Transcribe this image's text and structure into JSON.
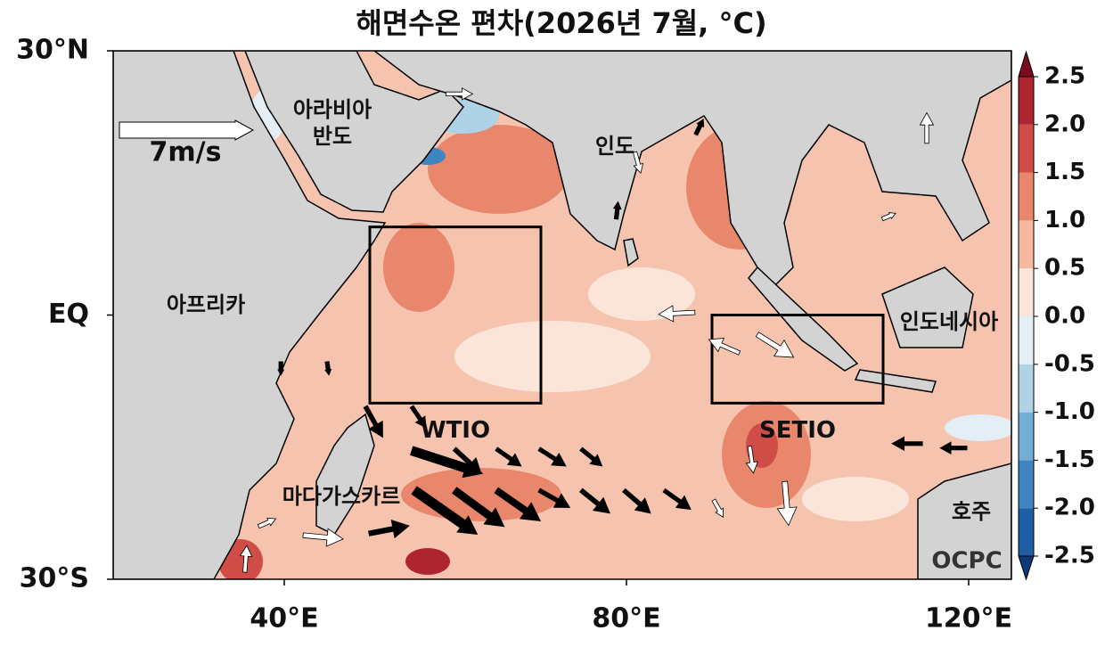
{
  "title": "해면수온 편차(2026년 7월, °C)",
  "map": {
    "lonlim": [
      20,
      125
    ],
    "latlim": [
      -30,
      30
    ],
    "lon_ticks": [
      {
        "value": 40,
        "label": "40°E"
      },
      {
        "value": 80,
        "label": "80°E"
      },
      {
        "value": 120,
        "label": "120°E"
      }
    ],
    "lat_ticks": [
      {
        "value": 30,
        "label": "30°N"
      },
      {
        "value": 0,
        "label": "EQ"
      },
      {
        "value": -30,
        "label": "30°S"
      }
    ],
    "regions": [
      {
        "lines": [
          "아라비아",
          "반도"
        ]
      },
      {
        "lines": [
          "인도"
        ]
      },
      {
        "lines": [
          "아프리카"
        ]
      },
      {
        "lines": [
          "인도네시아"
        ]
      },
      {
        "lines": [
          "마다가스카르"
        ]
      },
      {
        "lines": [
          "호주"
        ]
      }
    ],
    "boxes": [
      {
        "name": "WTIO",
        "lon": [
          50,
          70
        ],
        "lat": [
          -10,
          10
        ]
      },
      {
        "name": "SETIO",
        "lon": [
          90,
          110
        ],
        "lat": [
          -10,
          0
        ]
      }
    ],
    "wind_reference": {
      "value": 7,
      "label": "7m/s"
    },
    "wind_vectors": [
      {
        "lon": 49.5,
        "lat": -10.4,
        "u": 0.9,
        "v": -1.6,
        "significant": true
      },
      {
        "lon": 54.9,
        "lat": -10.4,
        "u": 0.75,
        "v": -1.1,
        "significant": true
      },
      {
        "lon": 54.9,
        "lat": -15.4,
        "u": 3.7,
        "v": -1.2,
        "significant": true
      },
      {
        "lon": 59.9,
        "lat": -15.2,
        "u": 1.4,
        "v": -1.3,
        "significant": true
      },
      {
        "lon": 64.8,
        "lat": -15.2,
        "u": 1.3,
        "v": -0.9,
        "significant": true
      },
      {
        "lon": 69.8,
        "lat": -15.2,
        "u": 1.4,
        "v": -0.9,
        "significant": true
      },
      {
        "lon": 74.7,
        "lat": -15.2,
        "u": 1.1,
        "v": -0.9,
        "significant": true
      },
      {
        "lon": 55.2,
        "lat": -19.9,
        "u": 3.3,
        "v": -2.3,
        "significant": true
      },
      {
        "lon": 59.9,
        "lat": -19.9,
        "u": 2.6,
        "v": -1.9,
        "significant": true
      },
      {
        "lon": 64.8,
        "lat": -19.9,
        "u": 2.3,
        "v": -1.6,
        "significant": true
      },
      {
        "lon": 69.8,
        "lat": -19.9,
        "u": 1.6,
        "v": -0.9,
        "significant": true
      },
      {
        "lon": 74.7,
        "lat": -19.9,
        "u": 1.5,
        "v": -1.2,
        "significant": true
      },
      {
        "lon": 79.7,
        "lat": -19.9,
        "u": 1.4,
        "v": -1.2,
        "significant": true
      },
      {
        "lon": 84.4,
        "lat": -19.9,
        "u": 1.4,
        "v": -1.0,
        "significant": true
      },
      {
        "lon": 49.9,
        "lat": -24.8,
        "u": 2.1,
        "v": 0.4,
        "significant": true
      },
      {
        "lon": 114.6,
        "lat": -14.6,
        "u": -1.6,
        "v": 0,
        "significant": true
      },
      {
        "lon": 119.8,
        "lat": -15.1,
        "u": -1.4,
        "v": 0,
        "significant": true
      },
      {
        "lon": 45,
        "lat": -5.3,
        "u": 0.1,
        "v": -0.7,
        "significant": true
      },
      {
        "lon": 39.6,
        "lat": -5.3,
        "u": 0,
        "v": -0.7,
        "significant": true
      },
      {
        "lon": 88.1,
        "lat": 20.5,
        "u": 0.4,
        "v": 0.8,
        "significant": true
      },
      {
        "lon": 78.8,
        "lat": 10.9,
        "u": 0.1,
        "v": 0.9,
        "significant": true
      },
      {
        "lon": 88,
        "lat": 0.3,
        "u": -1.9,
        "v": -0.1,
        "significant": false
      },
      {
        "lon": 95.3,
        "lat": -2.2,
        "u": 1.9,
        "v": -1.2,
        "significant": false
      },
      {
        "lon": 93.2,
        "lat": -4.3,
        "u": -1.6,
        "v": 0.7,
        "significant": false
      },
      {
        "lon": 58.9,
        "lat": 25.1,
        "u": 1.4,
        "v": 0,
        "significant": false
      },
      {
        "lon": 81,
        "lat": 18.5,
        "u": 0.3,
        "v": -1.1,
        "significant": false
      },
      {
        "lon": 115.1,
        "lat": 19.5,
        "u": 0,
        "v": 1.6,
        "significant": false
      },
      {
        "lon": 109.9,
        "lat": 10.9,
        "u": 0.7,
        "v": 0.3,
        "significant": false
      },
      {
        "lon": 37,
        "lat": -24,
        "u": 0.9,
        "v": 0.4,
        "significant": false
      },
      {
        "lon": 35.4,
        "lat": -29.2,
        "u": 0.1,
        "v": 1.4,
        "significant": false
      },
      {
        "lon": 94.4,
        "lat": -14.9,
        "u": 0.2,
        "v": -1.4,
        "significant": false
      },
      {
        "lon": 98.5,
        "lat": -18.9,
        "u": 0.2,
        "v": -2.3,
        "significant": false
      },
      {
        "lon": 90.2,
        "lat": -21,
        "u": 0.5,
        "v": -0.9,
        "significant": false
      },
      {
        "lon": 42.2,
        "lat": -25,
        "u": 2.1,
        "v": -0.2,
        "significant": false
      }
    ],
    "logo": "OCPC"
  },
  "colorbar": {
    "ticks": [
      2.5,
      {
        "value": 2.0,
        "label": "2.0"
      },
      1.5,
      {
        "value": 1.0,
        "label": "1.0"
      },
      0.5,
      {
        "value": 0.0,
        "label": "0.0"
      },
      -0.5,
      {
        "value": -1.0,
        "label": "-1.0"
      },
      -1.5,
      {
        "value": -2.0,
        "label": "-2.0"
      },
      -2.5
    ],
    "colors": [
      "#0a3a78",
      "#1f5ea5",
      "#3f85c0",
      "#75aed4",
      "#b0d2e6",
      "#e3eef5",
      "#fbe4d8",
      "#f5b8a0",
      "#e8876c",
      "#cf4d46",
      "#ad2530",
      "#7a0b21"
    ]
  }
}
